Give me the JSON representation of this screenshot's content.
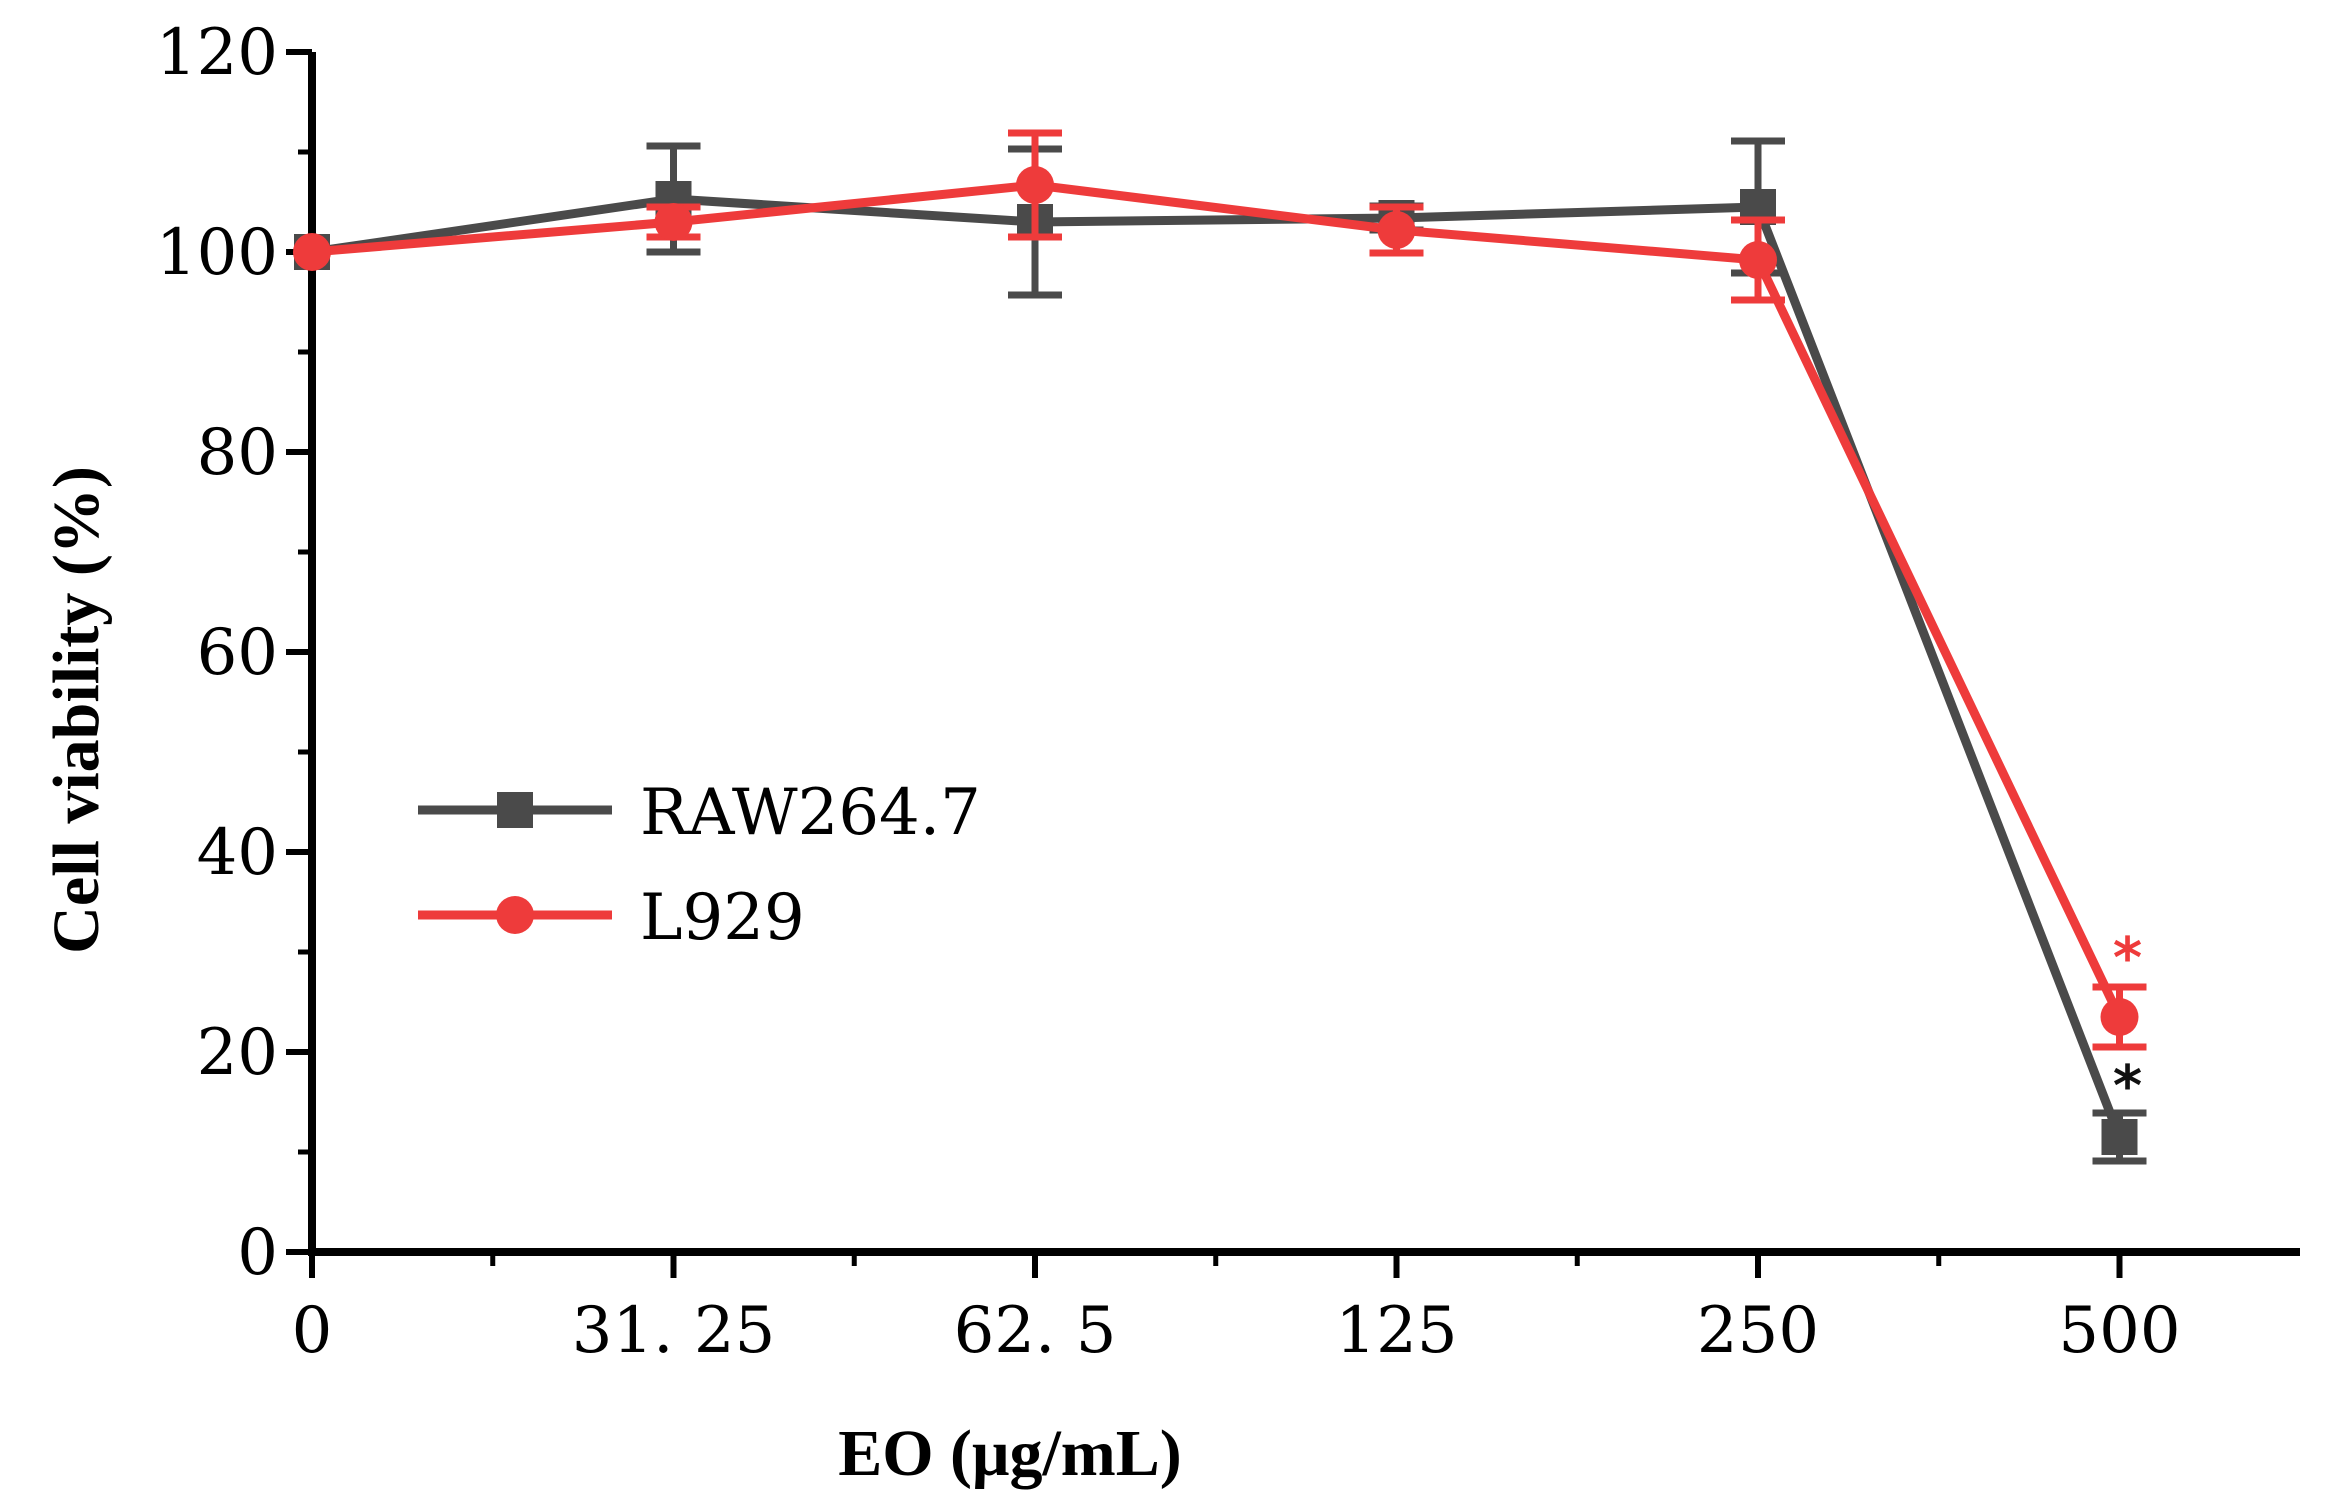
{
  "colors": {
    "raw": "#4a4a4a",
    "l929": "#ee3b3b",
    "axis": "#000000"
  },
  "chart_data": {
    "type": "line",
    "title": "",
    "xlabel": "EO (μg/mL)",
    "ylabel": "Cell viability (%)",
    "categories": [
      "0",
      "31. 25",
      "62. 5",
      "125",
      "250",
      "500"
    ],
    "ylim": [
      0,
      120
    ],
    "yticks": [
      "0",
      "20",
      "40",
      "60",
      "80",
      "100",
      "120"
    ],
    "legend_position": "middle-left",
    "series": [
      {
        "name": "RAW264.7",
        "marker": "square",
        "values": [
          100,
          105.3,
          103,
          103.4,
          104.5,
          11.5
        ],
        "errors": [
          0,
          5.3,
          7.3,
          1.2,
          6.6,
          2.4
        ],
        "significance": [
          "",
          "",
          "",
          "",
          "",
          "*"
        ]
      },
      {
        "name": "L929",
        "marker": "circle",
        "values": [
          100,
          103,
          106.7,
          102.2,
          99.2,
          23.5
        ],
        "errors": [
          0,
          1.5,
          5.2,
          2.3,
          4,
          3
        ]
      }
    ],
    "annotations": [
      {
        "series": "L929",
        "category": "500",
        "text": "*"
      },
      {
        "series": "RAW264.7",
        "category": "500",
        "text": "*"
      }
    ]
  }
}
